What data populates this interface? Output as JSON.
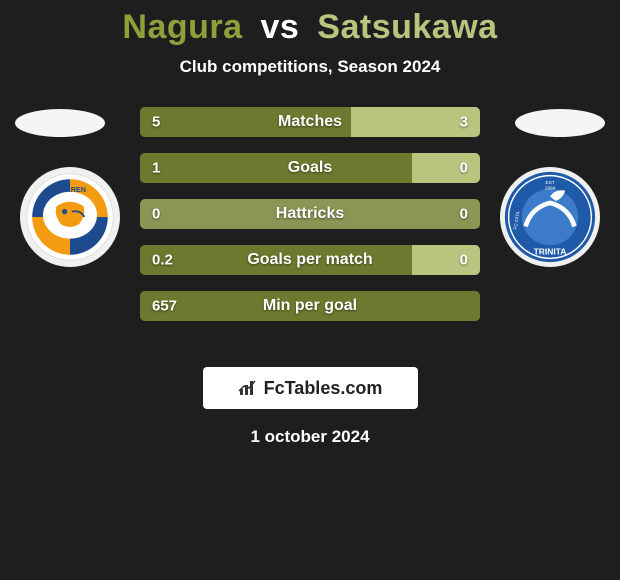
{
  "title_left": "Nagura",
  "title_vs": "vs",
  "title_right": "Satsukawa",
  "title_color_left": "#8fa03a",
  "title_color_vs": "#ffffff",
  "title_color_right": "#b9c57f",
  "subtitle": "Club competitions, Season 2024",
  "date": "1 october 2024",
  "watermark": "FcTables.com",
  "bar_colors": {
    "base": "#8a9654",
    "left": "#6b7a2e",
    "right": "#b9c57f"
  },
  "team_left": {
    "flag_bg": "#f5f5f5",
    "logo": {
      "primary": "#f39c12",
      "secondary": "#1e4b8f",
      "text": "V·VAREN"
    }
  },
  "team_right": {
    "flag_bg": "#f5f5f5",
    "logo": {
      "primary": "#1e5aa8",
      "secondary": "#ffffff",
      "text": "TRINITA"
    }
  },
  "stats": [
    {
      "label": "Matches",
      "left_val": "5",
      "right_val": "3",
      "left_pct": 62,
      "right_pct": 38
    },
    {
      "label": "Goals",
      "left_val": "1",
      "right_val": "0",
      "left_pct": 80,
      "right_pct": 20
    },
    {
      "label": "Hattricks",
      "left_val": "0",
      "right_val": "0",
      "left_pct": 0,
      "right_pct": 0
    },
    {
      "label": "Goals per match",
      "left_val": "0.2",
      "right_val": "0",
      "left_pct": 80,
      "right_pct": 20
    },
    {
      "label": "Min per goal",
      "left_val": "657",
      "right_val": "",
      "left_pct": 100,
      "right_pct": 0
    }
  ]
}
